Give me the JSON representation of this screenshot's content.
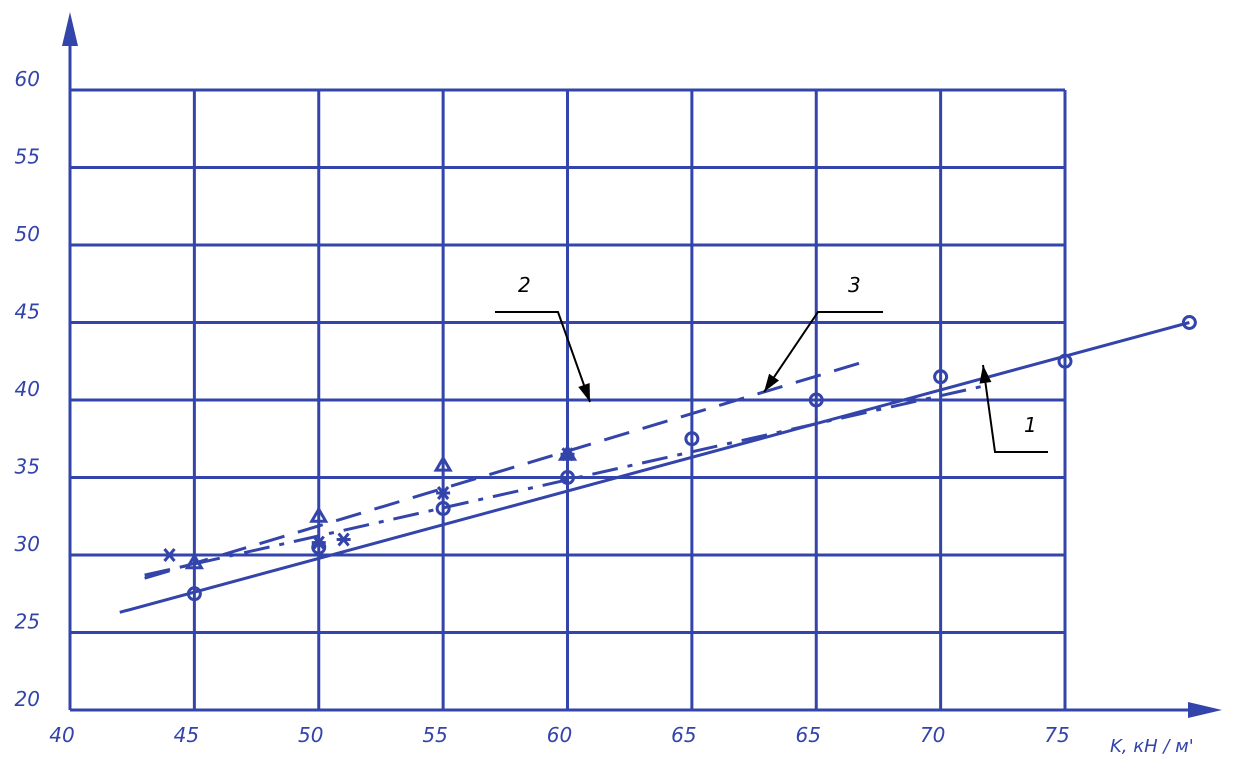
{
  "chart_data": {
    "type": "line",
    "title": "",
    "xlabel": "K, кН / м'",
    "ylabel": "",
    "x_ticks": [
      "40",
      "45",
      "50",
      "55",
      "60",
      "65",
      "65",
      "70",
      "75"
    ],
    "y_ticks": [
      "20",
      "25",
      "30",
      "35",
      "40",
      "45",
      "50",
      "55",
      "60"
    ],
    "ylim": [
      20,
      60
    ],
    "grid": true,
    "legend": "none",
    "colors": {
      "ink": "#3344aa"
    },
    "series": [
      {
        "label": "1",
        "style": "solid",
        "marker": "circle",
        "x": [
          45,
          50,
          55,
          60,
          65,
          70,
          75,
          80,
          85
        ],
        "y": [
          27.5,
          30.5,
          33,
          35,
          37.5,
          40,
          41.5,
          42.5,
          45
        ],
        "fit": {
          "x": [
            42,
            85
          ],
          "y": [
            26.3,
            45
          ]
        }
      },
      {
        "label": "2",
        "style": "dashed",
        "marker": "triangle",
        "x": [
          45,
          50,
          55,
          60
        ],
        "y": [
          29.5,
          32.5,
          35.8,
          36.5
        ],
        "fit": {
          "x": [
            43,
            72
          ],
          "y": [
            28.5,
            42.5
          ]
        }
      },
      {
        "label": "3",
        "style": "dashdot",
        "marker": "star",
        "x": [
          44,
          50,
          51,
          55,
          60
        ],
        "y": [
          30,
          30.8,
          31,
          34,
          36.5
        ],
        "fit": {
          "x": [
            43,
            77
          ],
          "y": [
            28.7,
            41
          ]
        }
      }
    ],
    "annotations": [
      {
        "text": "1",
        "series": "1"
      },
      {
        "text": "2",
        "series": "2"
      },
      {
        "text": "3",
        "series": "3"
      }
    ]
  }
}
